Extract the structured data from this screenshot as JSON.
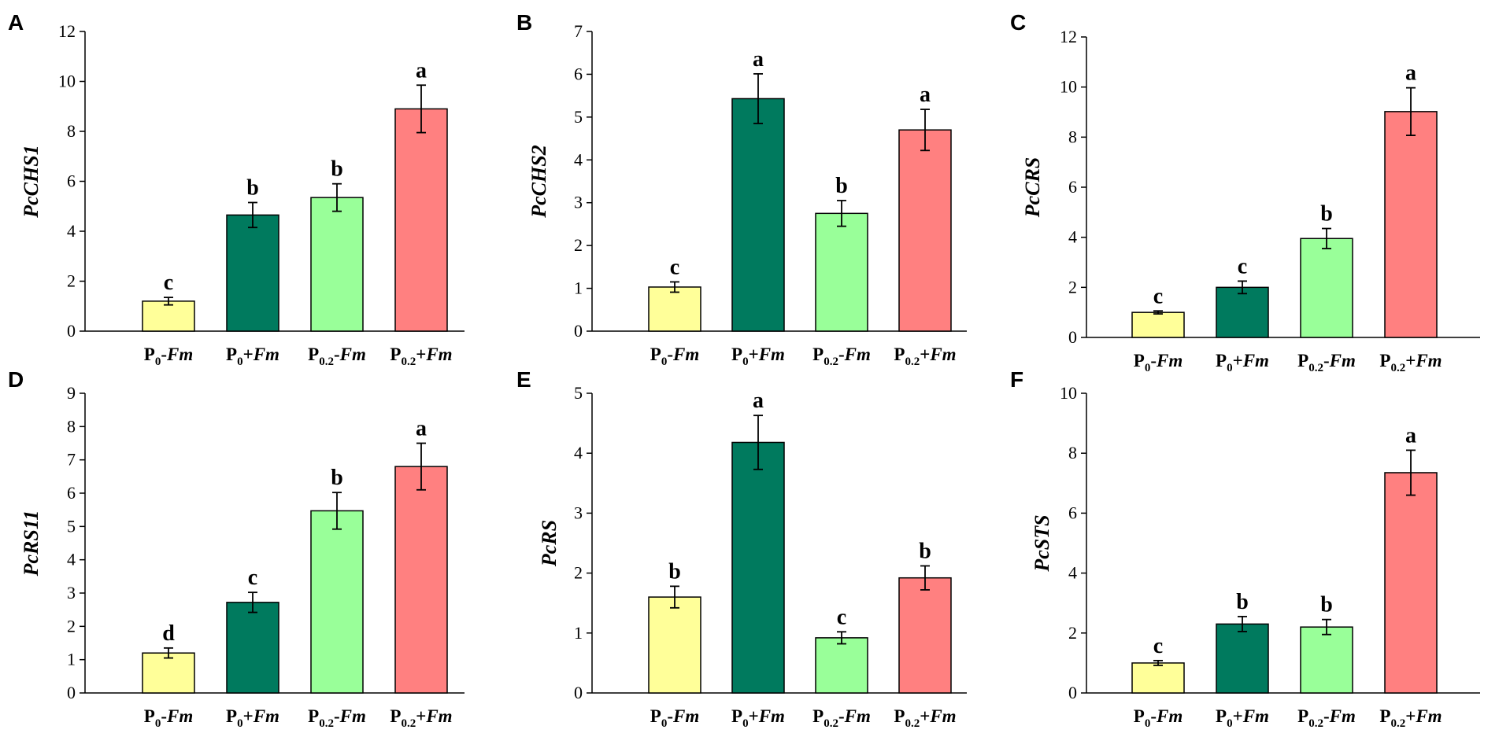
{
  "colors": {
    "p0_minus_fm": "#FFFF99",
    "p0_plus_fm": "#007A5E",
    "p02_minus_fm": "#99FF99",
    "p02_plus_fm": "#FF8080"
  },
  "chart_data": [
    {
      "type": "bar",
      "panel": "A",
      "ylabel": "PcCHS1",
      "categories": [
        {
          "base": "P",
          "sub": "0",
          "sign": "-",
          "italic": "Fm"
        },
        {
          "base": "P",
          "sub": "0",
          "sign": "+",
          "italic": "Fm"
        },
        {
          "base": "P",
          "sub": "0.2",
          "sign": "-",
          "italic": "Fm"
        },
        {
          "base": "P",
          "sub": "0.2",
          "sign": "+",
          "italic": "Fm"
        }
      ],
      "values": [
        1.2,
        4.65,
        5.35,
        8.9
      ],
      "errors": [
        0.15,
        0.5,
        0.55,
        0.95
      ],
      "significance": [
        "c",
        "b",
        "b",
        "a"
      ],
      "ylim": [
        0,
        12
      ],
      "yticks": [
        0,
        2,
        4,
        6,
        8,
        10,
        12
      ]
    },
    {
      "type": "bar",
      "panel": "B",
      "ylabel": "PcCHS2",
      "categories": [
        {
          "base": "P",
          "sub": "0",
          "sign": "-",
          "italic": "Fm"
        },
        {
          "base": "P",
          "sub": "0",
          "sign": "+",
          "italic": "Fm"
        },
        {
          "base": "P",
          "sub": "0.2",
          "sign": "-",
          "italic": "Fm"
        },
        {
          "base": "P",
          "sub": "0.2",
          "sign": "+",
          "italic": "Fm"
        }
      ],
      "values": [
        1.03,
        5.43,
        2.75,
        4.7
      ],
      "errors": [
        0.12,
        0.58,
        0.3,
        0.48
      ],
      "significance": [
        "c",
        "a",
        "b",
        "a"
      ],
      "ylim": [
        0,
        7
      ],
      "yticks": [
        0,
        1,
        2,
        3,
        4,
        5,
        6,
        7
      ]
    },
    {
      "type": "bar",
      "panel": "C",
      "ylabel": "PcCRS",
      "categories": [
        {
          "base": "P",
          "sub": "0",
          "sign": "-",
          "italic": "Fm"
        },
        {
          "base": "P",
          "sub": "0",
          "sign": "+",
          "italic": "Fm"
        },
        {
          "base": "P",
          "sub": "0.2",
          "sign": "-",
          "italic": "Fm"
        },
        {
          "base": "P",
          "sub": "0.2",
          "sign": "+",
          "italic": "Fm"
        }
      ],
      "values": [
        1.0,
        2.0,
        3.95,
        9.02
      ],
      "errors": [
        0.06,
        0.25,
        0.4,
        0.95
      ],
      "significance": [
        "c",
        "c",
        "b",
        "a"
      ],
      "ylim": [
        0,
        12
      ],
      "yticks": [
        0,
        2,
        4,
        6,
        8,
        10,
        12
      ]
    },
    {
      "type": "bar",
      "panel": "D",
      "ylabel": "PcRS11",
      "categories": [
        {
          "base": "P",
          "sub": "0",
          "sign": "-",
          "italic": "Fm"
        },
        {
          "base": "P",
          "sub": "0",
          "sign": "+",
          "italic": "Fm"
        },
        {
          "base": "P",
          "sub": "0.2",
          "sign": "-",
          "italic": "Fm"
        },
        {
          "base": "P",
          "sub": "0.2",
          "sign": "+",
          "italic": "Fm"
        }
      ],
      "values": [
        1.2,
        2.72,
        5.47,
        6.8
      ],
      "errors": [
        0.15,
        0.3,
        0.55,
        0.7
      ],
      "significance": [
        "d",
        "c",
        "b",
        "a"
      ],
      "ylim": [
        0,
        9
      ],
      "yticks": [
        0,
        1,
        2,
        3,
        4,
        5,
        6,
        7,
        8,
        9
      ]
    },
    {
      "type": "bar",
      "panel": "E",
      "ylabel": "PcRS",
      "categories": [
        {
          "base": "P",
          "sub": "0",
          "sign": "-",
          "italic": "Fm"
        },
        {
          "base": "P",
          "sub": "0",
          "sign": "+",
          "italic": "Fm"
        },
        {
          "base": "P",
          "sub": "0.2",
          "sign": "-",
          "italic": "Fm"
        },
        {
          "base": "P",
          "sub": "0.2",
          "sign": "+",
          "italic": "Fm"
        }
      ],
      "values": [
        1.6,
        4.18,
        0.92,
        1.92
      ],
      "errors": [
        0.18,
        0.45,
        0.1,
        0.2
      ],
      "significance": [
        "b",
        "a",
        "c",
        "b"
      ],
      "ylim": [
        0,
        5
      ],
      "yticks": [
        0,
        1,
        2,
        3,
        4,
        5
      ]
    },
    {
      "type": "bar",
      "panel": "F",
      "ylabel": "PcSTS",
      "categories": [
        {
          "base": "P",
          "sub": "0",
          "sign": "-",
          "italic": "Fm"
        },
        {
          "base": "P",
          "sub": "0",
          "sign": "+",
          "italic": "Fm"
        },
        {
          "base": "P",
          "sub": "0.2",
          "sign": "-",
          "italic": "Fm"
        },
        {
          "base": "P",
          "sub": "0.2",
          "sign": "+",
          "italic": "Fm"
        }
      ],
      "values": [
        1.0,
        2.3,
        2.2,
        7.35
      ],
      "errors": [
        0.08,
        0.25,
        0.25,
        0.75
      ],
      "significance": [
        "c",
        "b",
        "b",
        "a"
      ],
      "ylim": [
        0,
        10
      ],
      "yticks": [
        0,
        2,
        4,
        6,
        8,
        10
      ]
    }
  ]
}
